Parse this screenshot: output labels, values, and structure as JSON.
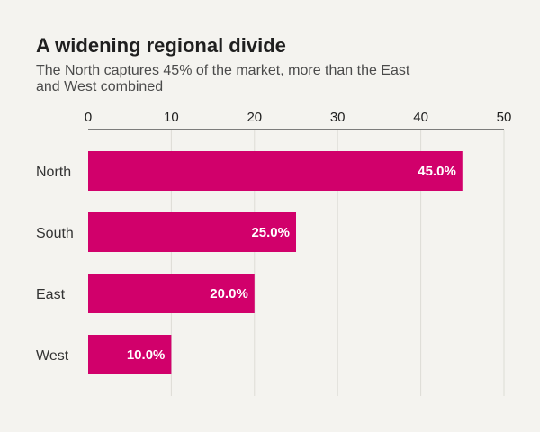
{
  "chart_data": {
    "type": "bar",
    "orientation": "horizontal",
    "title": "A widening regional divide",
    "subtitle_lines": [
      "The North captures 45% of the market, more than the East",
      "and West combined"
    ],
    "categories": [
      "North",
      "South",
      "East",
      "West"
    ],
    "values": [
      45.0,
      25.0,
      20.0,
      10.0
    ],
    "value_labels": [
      "45.0%",
      "25.0%",
      "20.0%",
      "10.0%"
    ],
    "x_ticks": [
      "0",
      "10",
      "20",
      "30",
      "40",
      "50"
    ],
    "xlim": [
      0,
      50
    ],
    "x_axis_position": "top",
    "grid": true,
    "colors": {
      "bar": "#d1006b",
      "background": "#f4f3ef",
      "grid": "#dddcd6",
      "axis": "#555555"
    }
  }
}
